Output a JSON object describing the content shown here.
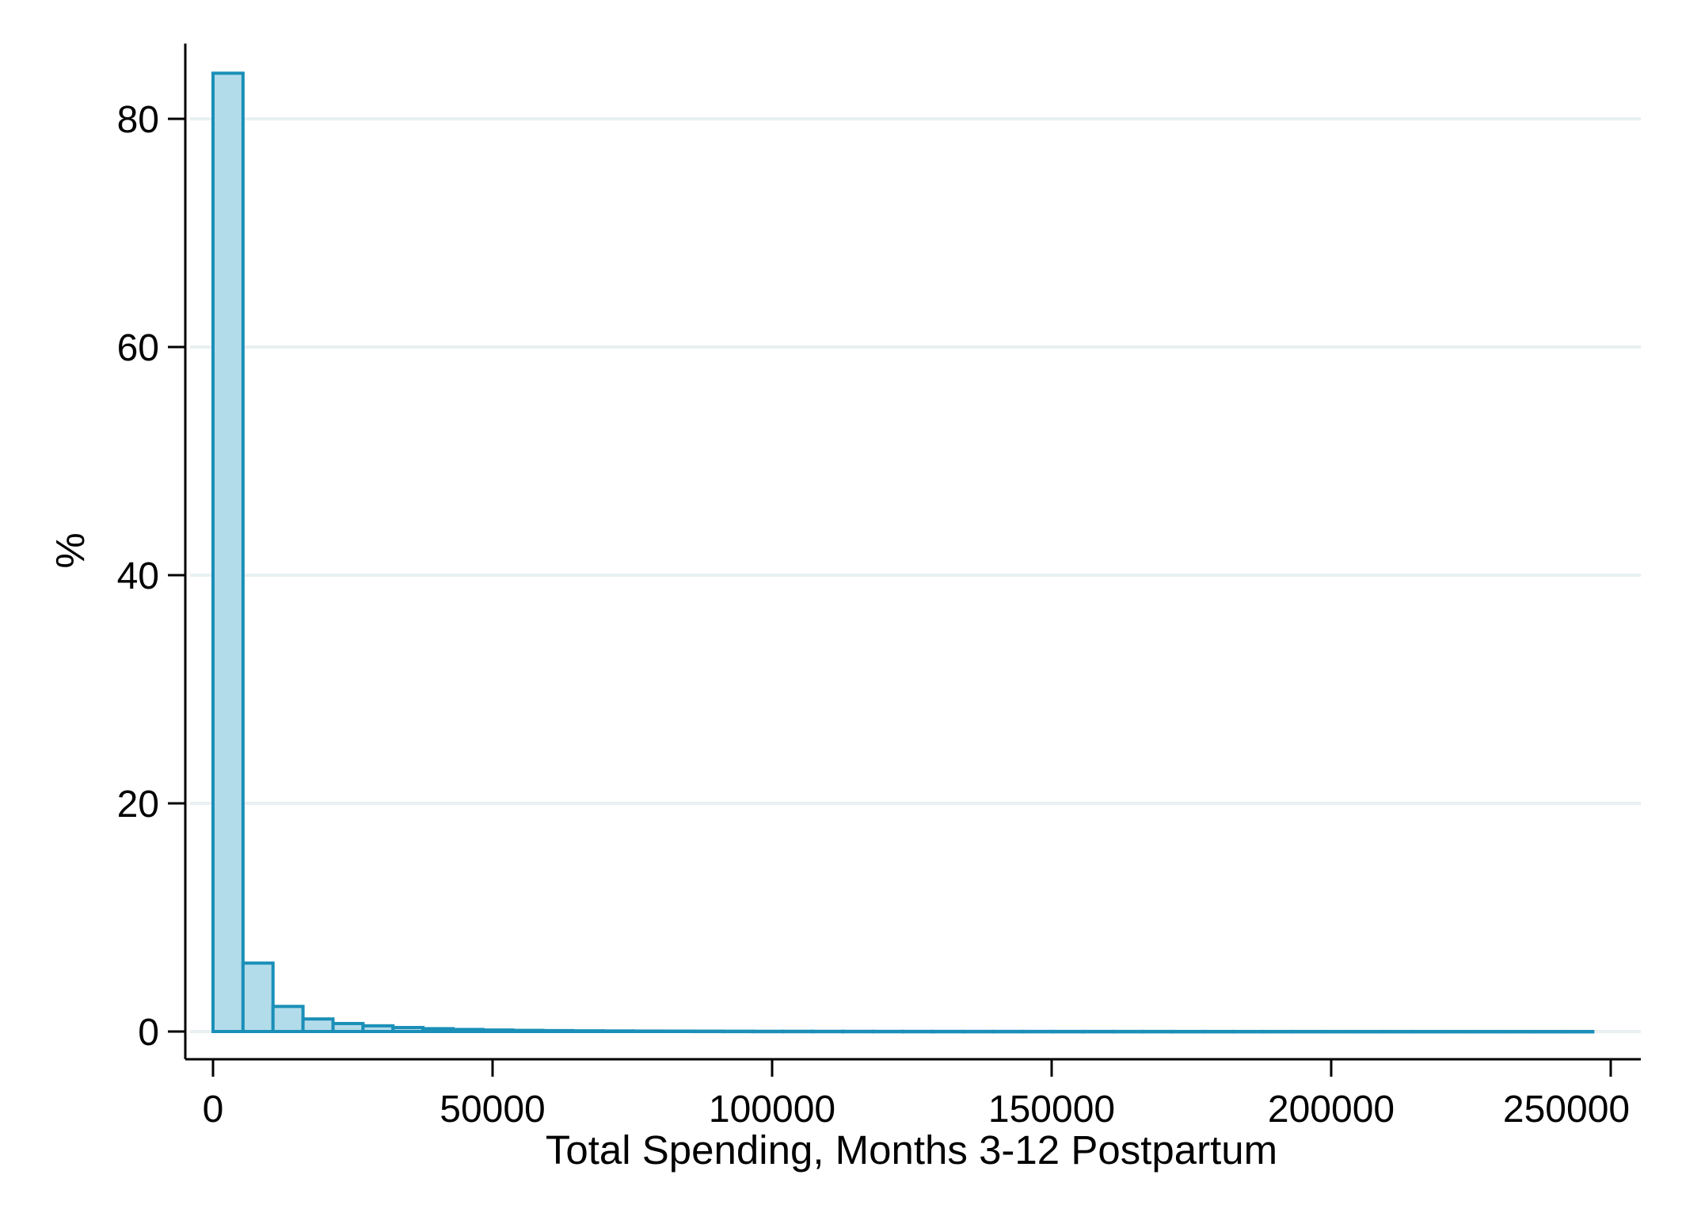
{
  "chart_data": {
    "type": "bar",
    "subtype": "histogram",
    "title": "",
    "xlabel": "Total Spending, Months 3-12 Postpartum",
    "ylabel": "%",
    "xlim": [
      0,
      250000
    ],
    "ylim": [
      0,
      85
    ],
    "x_ticks": [
      0,
      50000,
      100000,
      150000,
      200000,
      250000
    ],
    "x_tick_labels": [
      "0",
      "50000",
      "100000",
      "150000",
      "200000",
      "250000"
    ],
    "y_ticks": [
      0,
      20,
      40,
      60,
      80
    ],
    "y_tick_labels": [
      "0",
      "20",
      "40",
      "60",
      "80"
    ],
    "grid": "horizontal",
    "legend": "none",
    "bin_width": 5365,
    "bin_start": 0,
    "values": [
      84.0,
      6.0,
      2.2,
      1.1,
      0.7,
      0.5,
      0.35,
      0.25,
      0.18,
      0.13,
      0.1,
      0.08,
      0.06,
      0.05,
      0.04,
      0.035,
      0.03,
      0.025,
      0.02,
      0.02,
      0.018,
      0.016,
      0.014,
      0.012,
      0.011,
      0.01,
      0.01,
      0.009,
      0.008,
      0.008,
      0.007,
      0.007,
      0.006,
      0.006,
      0.005,
      0.005,
      0.005,
      0.004,
      0.004,
      0.004,
      0.003,
      0.003,
      0.003,
      0.003,
      0.002,
      0.002
    ],
    "colors": {
      "bar_fill": "#b3dcea",
      "bar_stroke": "#1a8fb8",
      "grid": "#e8f0f2",
      "axis": "#000000"
    }
  }
}
